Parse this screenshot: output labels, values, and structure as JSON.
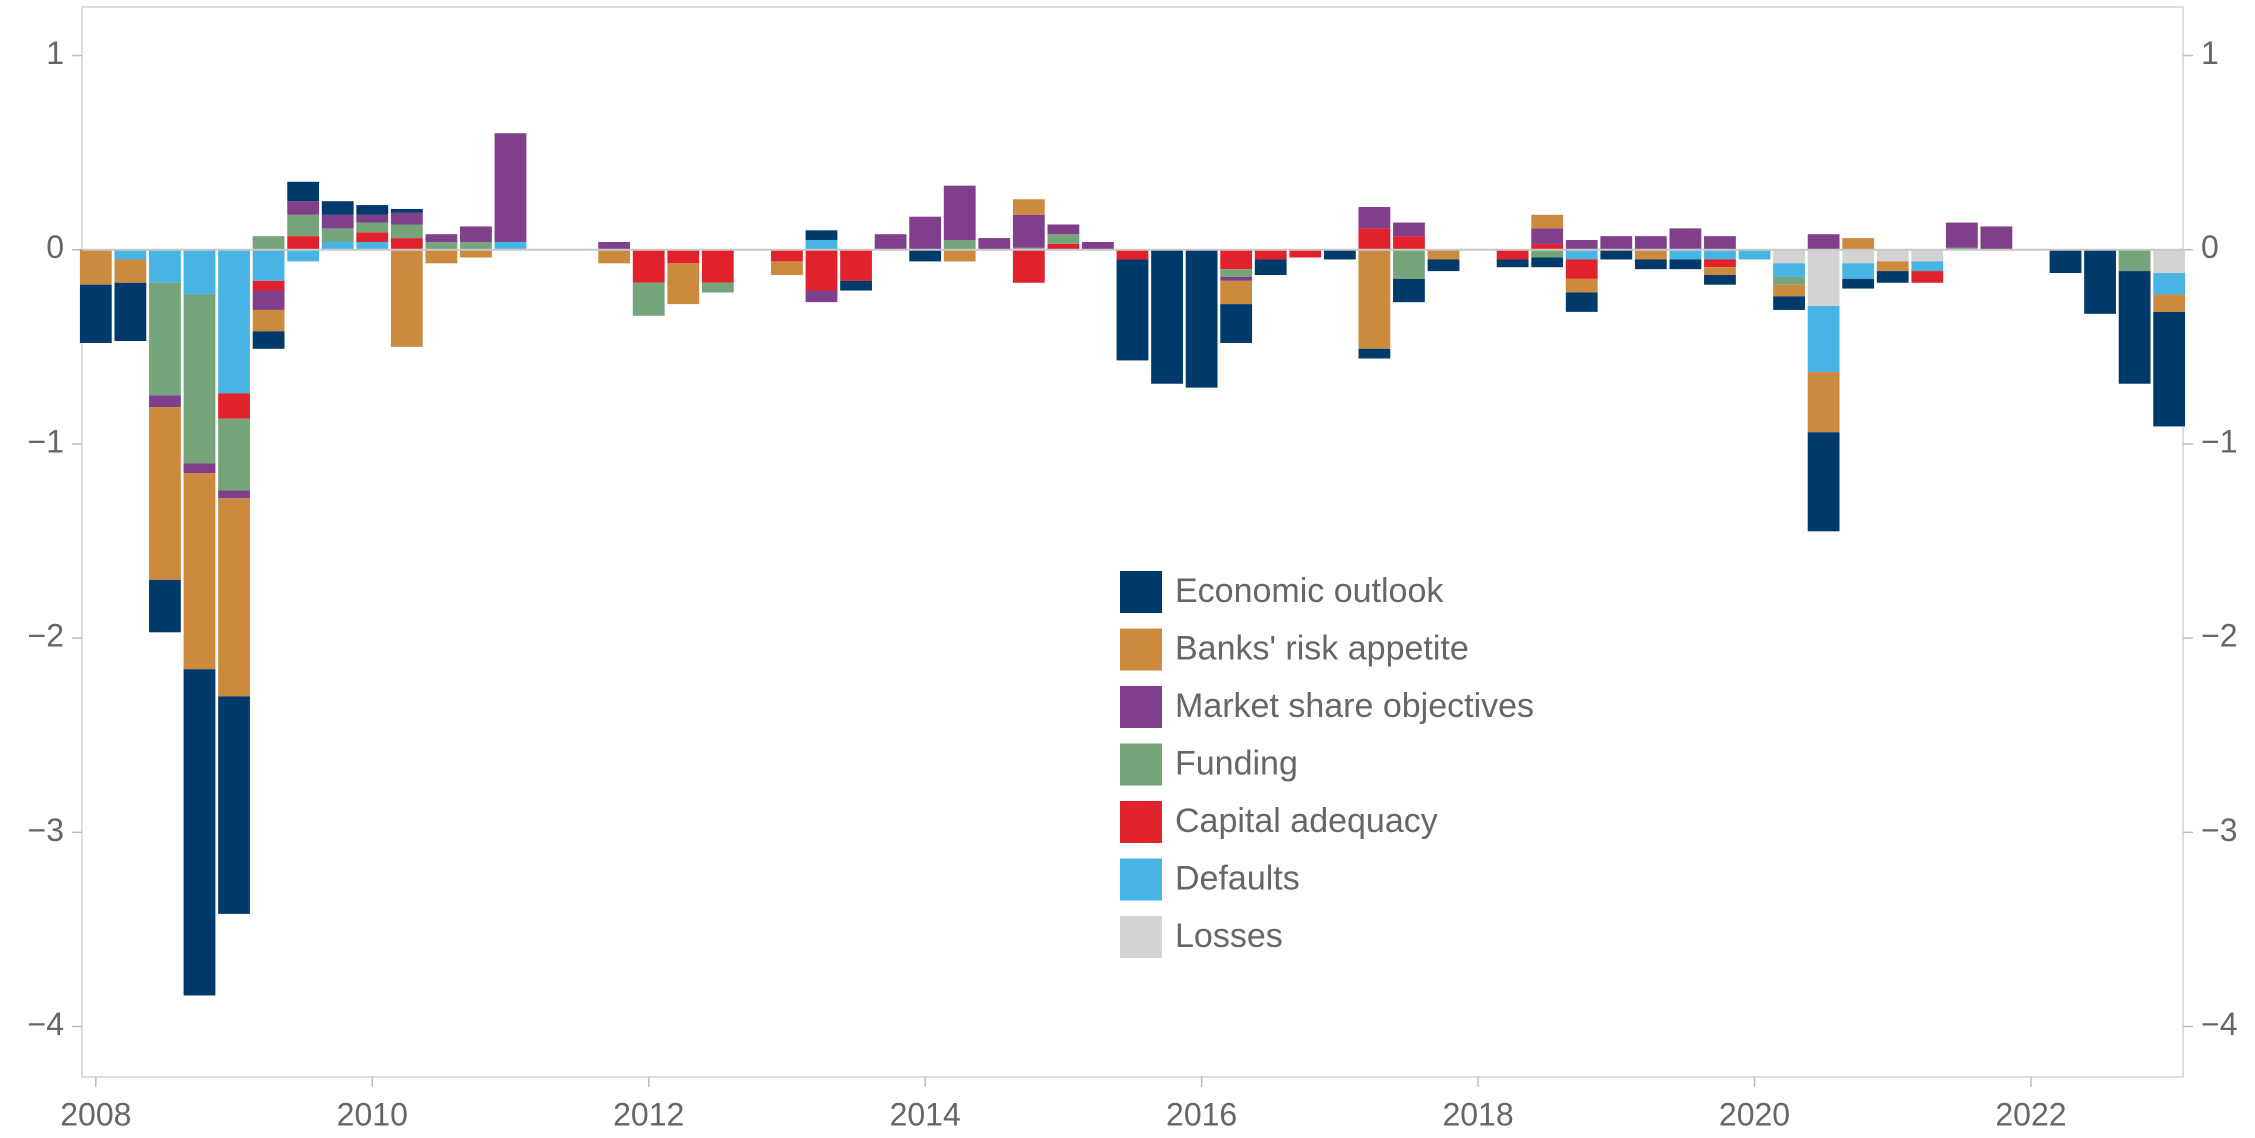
{
  "chart_data": {
    "type": "stacked-bar",
    "x": [
      2008,
      2008.25,
      2008.5,
      2008.75,
      2009,
      2009.25,
      2009.5,
      2009.75,
      2010,
      2010.25,
      2010.5,
      2010.75,
      2011,
      2011.25,
      2011.5,
      2011.75,
      2012,
      2012.25,
      2012.5,
      2012.75,
      2013,
      2013.25,
      2013.5,
      2013.75,
      2014,
      2014.25,
      2014.5,
      2014.75,
      2015,
      2015.25,
      2015.5,
      2015.75,
      2016,
      2016.25,
      2016.5,
      2016.75,
      2017,
      2017.25,
      2017.5,
      2017.75,
      2018,
      2018.25,
      2018.5,
      2018.75,
      2019,
      2019.25,
      2019.5,
      2019.75,
      2020,
      2020.25,
      2020.5,
      2020.75,
      2021,
      2021.25,
      2021.5,
      2021.75,
      2022,
      2022.25,
      2022.5,
      2022.75,
      2023
    ],
    "xlim": [
      2007.9,
      2023.1
    ],
    "xticks": [
      2008,
      2010,
      2012,
      2014,
      2016,
      2018,
      2020,
      2022
    ],
    "ylim": [
      -4.26,
      1.25
    ],
    "yticks": [
      {
        "value": -4,
        "label": "−4"
      },
      {
        "value": -3,
        "label": "−3"
      },
      {
        "value": -2,
        "label": "−2"
      },
      {
        "value": -1,
        "label": "−1"
      },
      0,
      1
    ],
    "series": [
      {
        "name": "Economic outlook",
        "color": "#003a6b",
        "values": [
          -0.3,
          -0.3,
          -0.27,
          -1.68,
          -1.12,
          -0.09,
          0.1,
          0.07,
          0.05,
          0.02,
          0,
          0,
          0,
          0,
          0,
          0,
          0,
          0,
          0,
          0,
          0,
          0.05,
          -0.05,
          0,
          -0.06,
          0,
          0,
          0,
          0,
          0,
          -0.52,
          -0.69,
          -0.71,
          -0.2,
          -0.08,
          0,
          -0.05,
          -0.05,
          -0.12,
          -0.06,
          0,
          -0.04,
          -0.05,
          -0.1,
          -0.05,
          -0.05,
          -0.05,
          -0.05,
          0,
          -0.07,
          -0.51,
          -0.05,
          -0.06,
          0,
          0,
          0,
          0,
          -0.12,
          -0.33,
          -0.58,
          -0.59
        ]
      },
      {
        "name": "Banks' risk appetite",
        "color": "#cc8a3e",
        "values": [
          -0.18,
          -0.12,
          -0.89,
          -1.01,
          -1.02,
          -0.11,
          0,
          0,
          0,
          -0.5,
          -0.07,
          -0.04,
          0,
          0,
          0,
          -0.07,
          0,
          -0.21,
          0,
          0,
          -0.07,
          0,
          0,
          0,
          0,
          -0.06,
          0,
          0.08,
          0,
          0,
          0,
          0,
          0,
          -0.12,
          0,
          0,
          0,
          -0.51,
          0,
          -0.05,
          0,
          0,
          0.07,
          -0.07,
          0,
          -0.05,
          0,
          -0.04,
          0,
          -0.06,
          -0.31,
          0.06,
          -0.05,
          0,
          0,
          0,
          0,
          0,
          0,
          0,
          -0.09
        ]
      },
      {
        "name": "Market share objectives",
        "color": "#7f3f8a",
        "values": [
          0,
          0,
          -0.06,
          -0.05,
          -0.04,
          -0.1,
          0.07,
          0.07,
          0.04,
          0.06,
          0.04,
          0.08,
          0.56,
          0,
          0,
          0.04,
          0,
          0,
          0,
          0,
          0,
          -0.06,
          0,
          0.08,
          0.17,
          0.28,
          0.06,
          0.17,
          0.05,
          0.04,
          0,
          0,
          0,
          -0.02,
          0,
          0,
          0,
          0.11,
          0.07,
          0,
          0,
          0,
          0.08,
          0.05,
          0.07,
          0.07,
          0.11,
          0.07,
          0,
          0,
          0.08,
          0,
          0,
          0,
          0.13,
          0.12,
          0,
          0,
          0,
          0,
          0
        ]
      },
      {
        "name": "Funding",
        "color": "#75a47b",
        "values": [
          0,
          0,
          -0.58,
          -0.87,
          -0.37,
          0.07,
          0.11,
          0.07,
          0.05,
          0.07,
          0.04,
          0.04,
          0,
          0,
          0,
          0,
          -0.17,
          0,
          -0.05,
          0,
          0,
          0,
          0,
          0,
          0,
          0.05,
          0,
          0.01,
          0.05,
          0,
          0,
          0,
          0,
          -0.04,
          0,
          0,
          0,
          0,
          -0.15,
          0,
          0,
          0,
          -0.04,
          0,
          0,
          0,
          0,
          0,
          0,
          -0.04,
          0,
          0,
          0,
          0,
          0.01,
          0,
          0,
          0,
          0,
          -0.11,
          0
        ]
      },
      {
        "name": "Capital adequacy",
        "color": "#e1222c",
        "values": [
          0,
          0,
          0,
          0,
          -0.13,
          -0.05,
          0.07,
          0,
          0.05,
          0.06,
          0,
          0,
          0,
          0,
          0,
          0,
          -0.17,
          -0.07,
          -0.17,
          0,
          -0.06,
          -0.21,
          -0.16,
          0,
          0,
          0,
          0,
          -0.17,
          0.03,
          0,
          -0.05,
          0,
          0,
          -0.1,
          -0.05,
          -0.04,
          0,
          0.11,
          0.07,
          0,
          0,
          -0.05,
          0.03,
          -0.1,
          0,
          0,
          0,
          -0.04,
          0,
          0,
          0,
          0,
          0,
          -0.06,
          0,
          0,
          0,
          0,
          0,
          0,
          0
        ]
      },
      {
        "name": "Defaults",
        "color": "#48b4e3",
        "values": [
          0,
          -0.05,
          -0.17,
          -0.23,
          -0.74,
          -0.16,
          -0.06,
          0.04,
          0.04,
          0,
          0,
          0,
          0.04,
          0,
          0,
          0,
          0,
          0,
          0,
          0,
          0,
          0.05,
          0,
          0,
          0,
          0,
          0,
          0,
          0,
          0,
          0,
          0,
          0,
          0,
          0,
          0,
          0,
          0,
          0,
          0,
          0,
          0,
          0,
          -0.05,
          0,
          0,
          -0.05,
          -0.05,
          -0.05,
          -0.07,
          -0.34,
          -0.08,
          0,
          -0.05,
          0,
          0,
          0,
          0,
          0,
          0,
          -0.11
        ]
      },
      {
        "name": "Losses",
        "color": "#d3d3d3",
        "values": [
          0,
          0,
          0,
          0,
          0,
          0,
          0,
          0,
          0,
          0,
          0,
          0,
          0,
          0,
          0,
          0,
          0,
          0,
          0,
          0,
          0,
          0,
          0,
          0,
          0,
          0,
          0,
          0,
          0,
          0,
          0,
          0,
          0,
          0,
          0,
          0,
          0,
          0,
          0,
          0,
          0,
          0,
          0,
          0,
          0,
          0,
          0,
          0,
          0,
          -0.07,
          -0.29,
          -0.07,
          -0.06,
          -0.06,
          0,
          0,
          0,
          0,
          0,
          0,
          -0.12
        ]
      }
    ]
  }
}
